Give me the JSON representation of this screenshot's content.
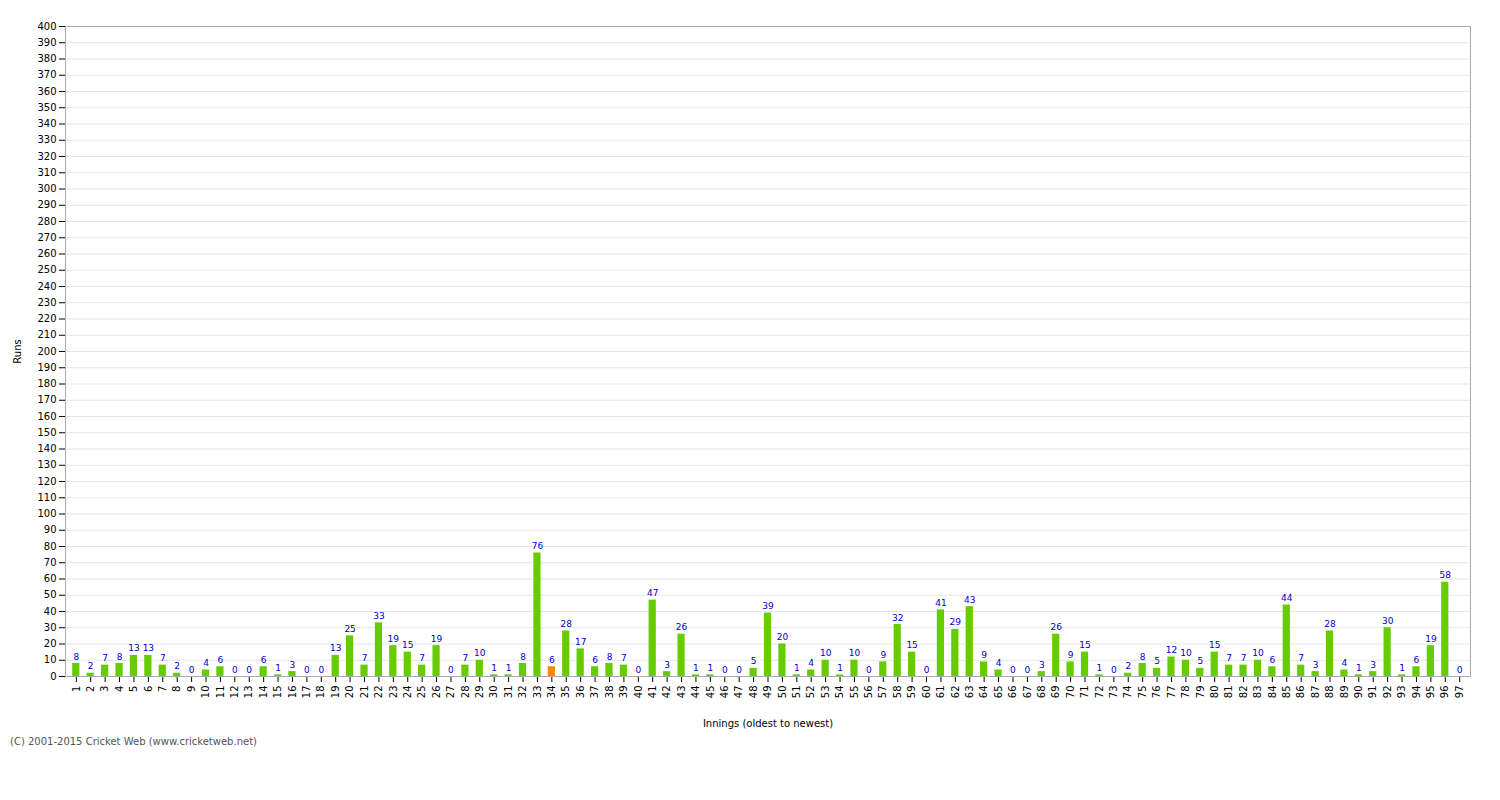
{
  "chart_data": {
    "type": "bar",
    "xlabel": "Innings (oldest to newest)",
    "ylabel": "Runs",
    "categories": [
      "1",
      "2",
      "3",
      "4",
      "5",
      "6",
      "7",
      "8",
      "9",
      "10",
      "11",
      "12",
      "13",
      "14",
      "15",
      "16",
      "17",
      "18",
      "19",
      "20",
      "21",
      "22",
      "23",
      "24",
      "25",
      "26",
      "27",
      "28",
      "29",
      "30",
      "31",
      "32",
      "33",
      "34",
      "35",
      "36",
      "37",
      "38",
      "39",
      "40",
      "41",
      "42",
      "43",
      "44",
      "45",
      "46",
      "47",
      "48",
      "49",
      "50",
      "51",
      "52",
      "53",
      "54",
      "55",
      "56",
      "57",
      "58",
      "59",
      "60",
      "61",
      "62",
      "63",
      "64",
      "65",
      "66",
      "67",
      "68",
      "69",
      "70",
      "71",
      "72",
      "73",
      "74",
      "75",
      "76",
      "77",
      "78",
      "79",
      "80",
      "81",
      "82",
      "83",
      "84",
      "85",
      "86",
      "87",
      "88",
      "89",
      "90",
      "91",
      "92",
      "93",
      "94",
      "95",
      "96",
      "97"
    ],
    "values": [
      8,
      2,
      7,
      8,
      13,
      13,
      7,
      2,
      0,
      4,
      6,
      0,
      0,
      6,
      1,
      3,
      0,
      0,
      13,
      25,
      7,
      33,
      19,
      15,
      7,
      19,
      0,
      7,
      10,
      1,
      1,
      8,
      76,
      6,
      28,
      17,
      6,
      8,
      7,
      0,
      47,
      3,
      26,
      1,
      1,
      0,
      0,
      5,
      39,
      20,
      1,
      4,
      10,
      1,
      10,
      0,
      9,
      32,
      15,
      0,
      41,
      29,
      43,
      9,
      4,
      0,
      0,
      3,
      26,
      9,
      15,
      1,
      0,
      2,
      8,
      5,
      12,
      10,
      5,
      15,
      7,
      7,
      10,
      6,
      44,
      7,
      3,
      28,
      4,
      1,
      3,
      30,
      1,
      6,
      19,
      58,
      0
    ],
    "colors": [
      "#66cc00",
      "#66cc00",
      "#66cc00",
      "#66cc00",
      "#66cc00",
      "#66cc00",
      "#66cc00",
      "#66cc00",
      "#66cc00",
      "#66cc00",
      "#66cc00",
      "#66cc00",
      "#66cc00",
      "#66cc00",
      "#66cc00",
      "#66cc00",
      "#66cc00",
      "#66cc00",
      "#66cc00",
      "#66cc00",
      "#66cc00",
      "#66cc00",
      "#66cc00",
      "#66cc00",
      "#66cc00",
      "#66cc00",
      "#66cc00",
      "#66cc00",
      "#66cc00",
      "#66cc00",
      "#66cc00",
      "#66cc00",
      "#66cc00",
      "#ff8800",
      "#66cc00",
      "#66cc00",
      "#66cc00",
      "#66cc00",
      "#66cc00",
      "#66cc00",
      "#66cc00",
      "#66cc00",
      "#66cc00",
      "#66cc00",
      "#66cc00",
      "#66cc00",
      "#66cc00",
      "#66cc00",
      "#66cc00",
      "#66cc00",
      "#66cc00",
      "#66cc00",
      "#66cc00",
      "#66cc00",
      "#66cc00",
      "#66cc00",
      "#66cc00",
      "#66cc00",
      "#66cc00",
      "#66cc00",
      "#66cc00",
      "#66cc00",
      "#66cc00",
      "#66cc00",
      "#66cc00",
      "#66cc00",
      "#66cc00",
      "#66cc00",
      "#66cc00",
      "#66cc00",
      "#66cc00",
      "#66cc00",
      "#66cc00",
      "#66cc00",
      "#66cc00",
      "#66cc00",
      "#66cc00",
      "#66cc00",
      "#66cc00",
      "#66cc00",
      "#66cc00",
      "#66cc00",
      "#66cc00",
      "#66cc00",
      "#66cc00",
      "#66cc00",
      "#66cc00",
      "#66cc00",
      "#66cc00",
      "#66cc00",
      "#66cc00",
      "#66cc00",
      "#66cc00",
      "#66cc00",
      "#66cc00",
      "#66cc00",
      "#ff8800"
    ],
    "ylim": [
      0,
      400
    ],
    "yticks": [
      0,
      10,
      20,
      30,
      40,
      50,
      60,
      70,
      80,
      90,
      100,
      110,
      120,
      130,
      140,
      150,
      160,
      170,
      180,
      190,
      200,
      210,
      220,
      230,
      240,
      250,
      260,
      270,
      280,
      290,
      300,
      310,
      320,
      330,
      340,
      350,
      360,
      370,
      380,
      390,
      400
    ],
    "grid": true,
    "data_labels": true,
    "annotations": [
      "(C) 2001-2015 Cricket Web (www.cricketweb.net)"
    ]
  }
}
